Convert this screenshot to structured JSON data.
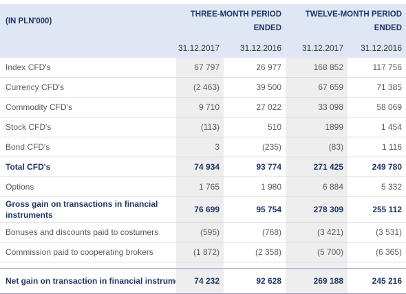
{
  "table": {
    "unit_label": "(IN PLN'000)",
    "periods": [
      "THREE-MONTH PERIOD ENDED",
      "TWELVE-MONTH PERIOD ENDED"
    ],
    "dates": [
      "31.12.2017",
      "31.12.2016",
      "31.12.2017",
      "31.12.2016"
    ],
    "rows": [
      {
        "label": "Index CFD's",
        "values": [
          "67 797",
          "26 977",
          "168 852",
          "117 756"
        ]
      },
      {
        "label": "Currency CFD's",
        "values": [
          "(2 463)",
          "39 500",
          "67 659",
          "71 385"
        ]
      },
      {
        "label": "Commodity CFD's",
        "values": [
          "9 710",
          "27 022",
          "33 098",
          "58 069"
        ]
      },
      {
        "label": "Stock CFD's",
        "values": [
          "(113)",
          "510",
          "1899",
          "1 454"
        ]
      },
      {
        "label": "Bond CFD's",
        "values": [
          "3",
          "(235)",
          "(83)",
          "1 116"
        ]
      },
      {
        "label": "Total CFD's",
        "values": [
          "74 934",
          "93 774",
          "271 425",
          "249 780"
        ]
      },
      {
        "label": "Options",
        "values": [
          "1 765",
          "1 980",
          "6 884",
          "5 332"
        ]
      },
      {
        "label": "Gross gain on transactions in financial instruments",
        "values": [
          "76 699",
          "95 754",
          "278 309",
          "255 112"
        ]
      },
      {
        "label": "Bonuses and discounts paid to costumers",
        "values": [
          "(595)",
          "(768)",
          "(3 421)",
          "(3 531)"
        ]
      },
      {
        "label": "Commission paid to cooperating brokers",
        "values": [
          "(1 872)",
          "(2 358)",
          "(5 700)",
          "(6 365)"
        ]
      },
      {
        "label": "Net gain on transaction in financial instrumen",
        "values": [
          "74 232",
          "92 628",
          "269 188",
          "245 216"
        ]
      }
    ]
  }
}
